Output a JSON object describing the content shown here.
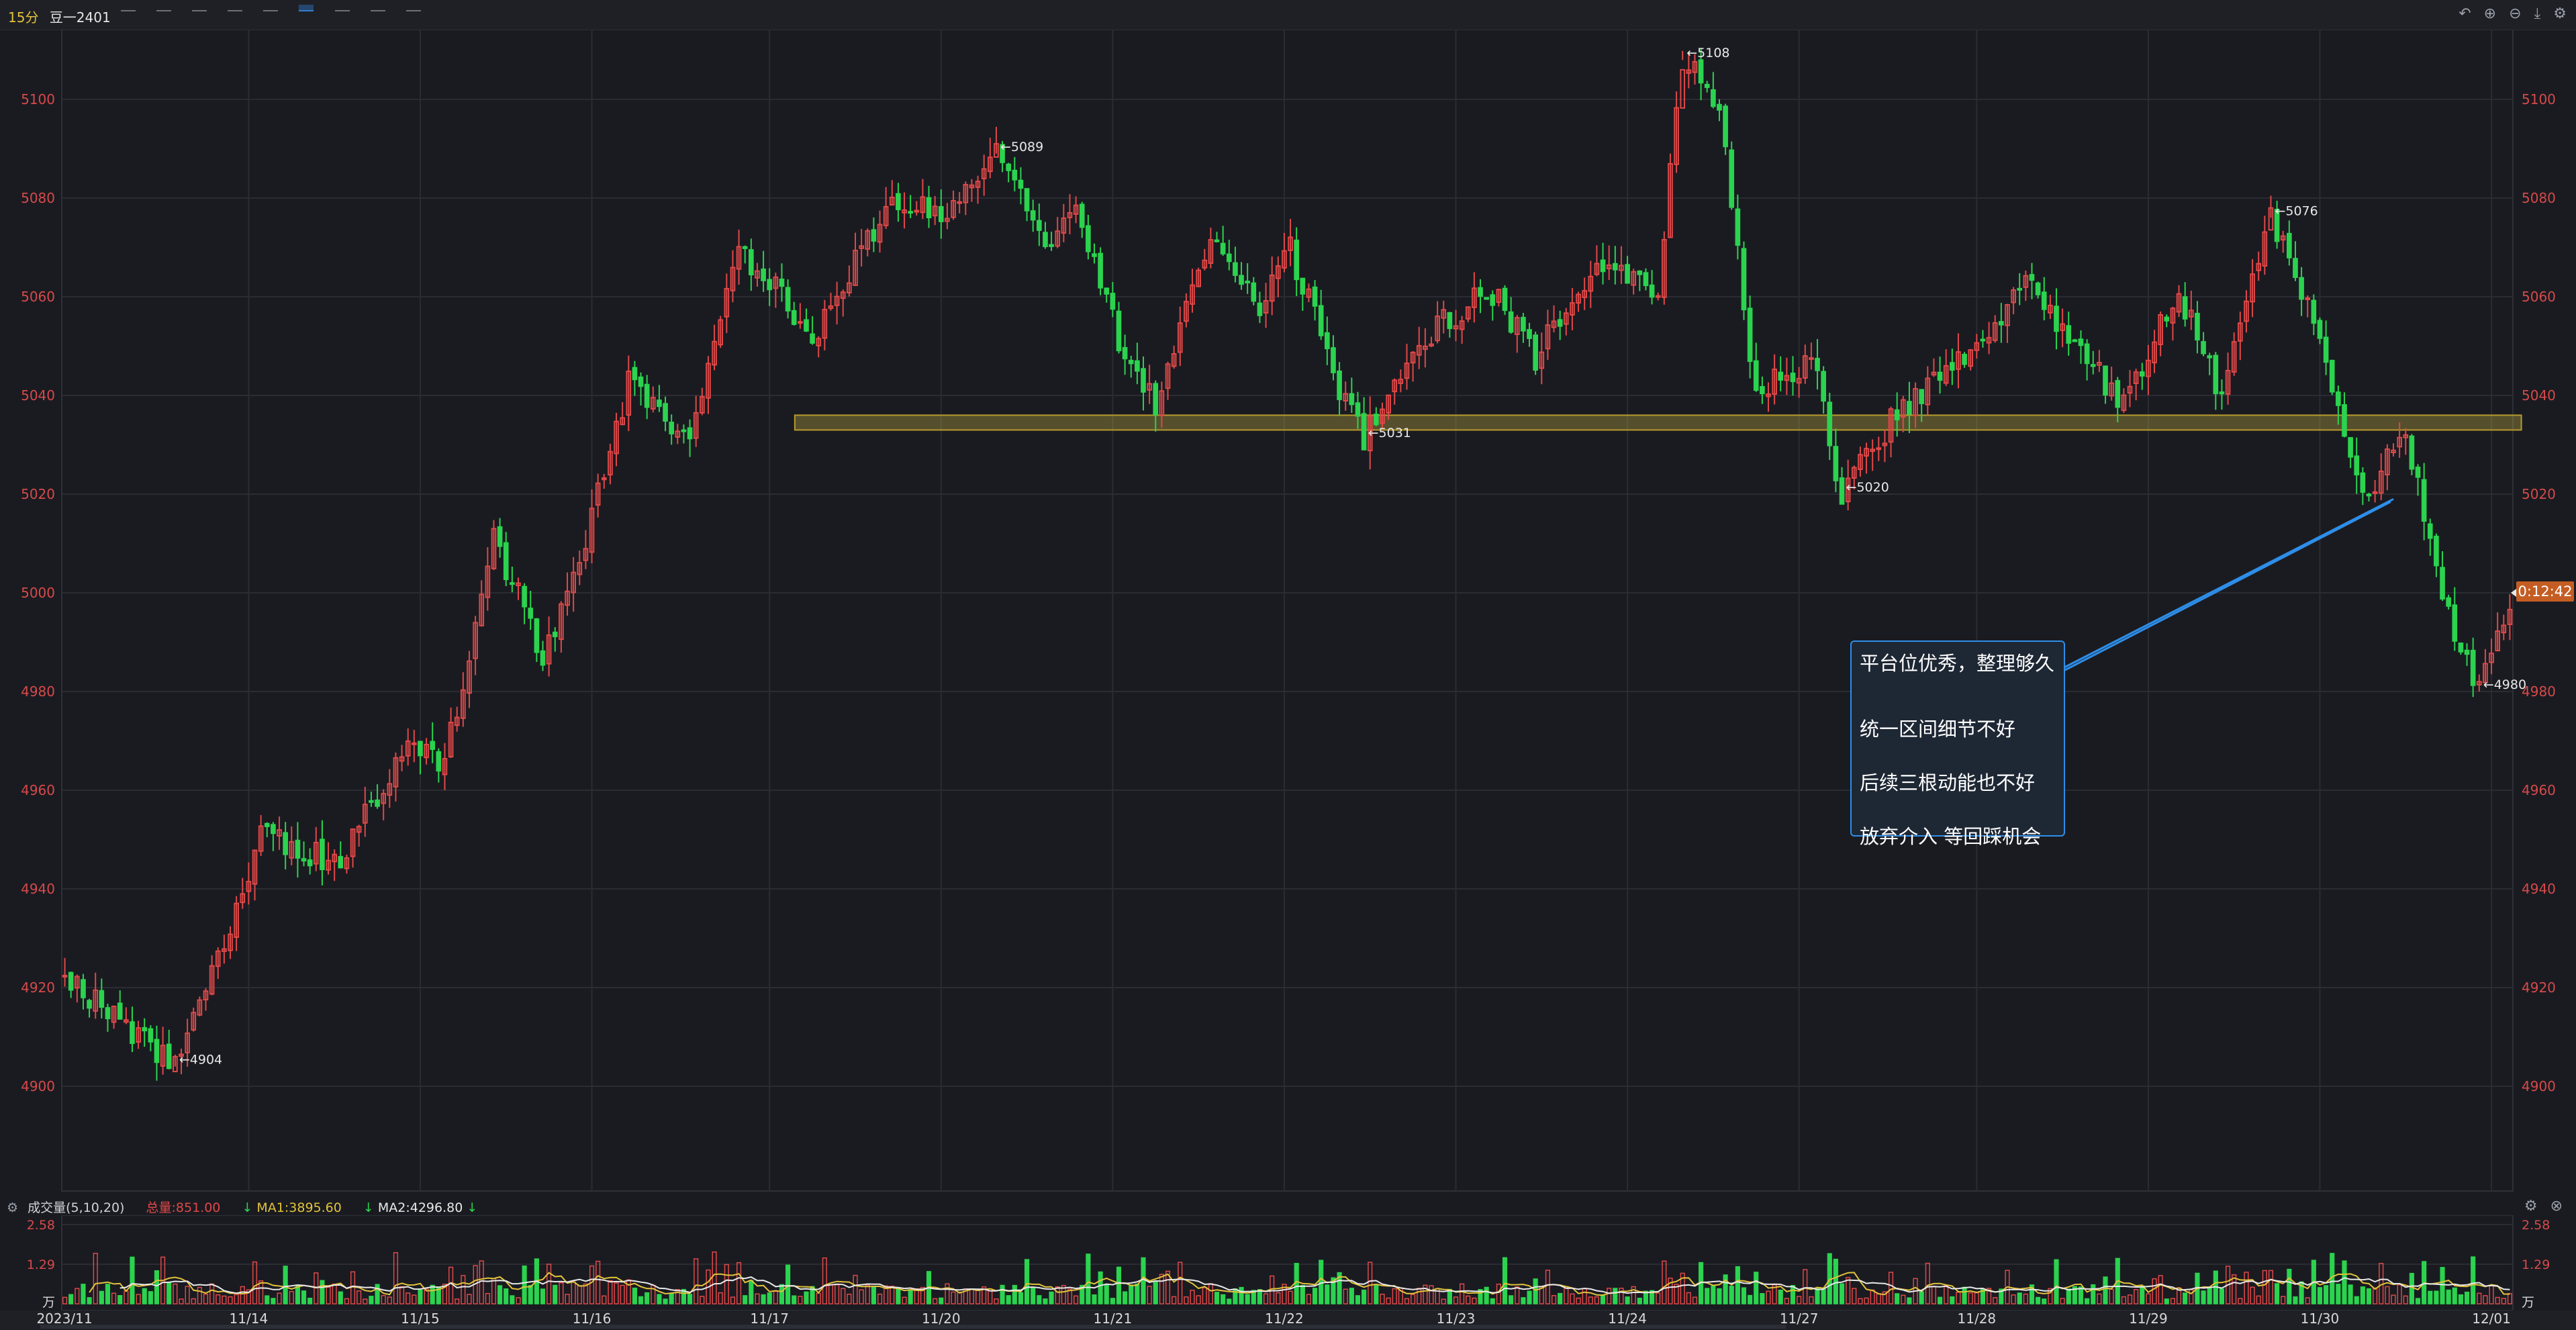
{
  "header": {
    "period": "15分",
    "symbol": "豆一2401",
    "right_icons": [
      "undo-icon",
      "zoom-in-icon",
      "zoom-out-icon",
      "export-icon",
      "settings-icon"
    ]
  },
  "chart_data": {
    "type": "candlestick",
    "price_axis": {
      "ylim": [
        4880,
        5120
      ],
      "ticks": [
        5100,
        5080,
        5060,
        5040,
        5020,
        5000,
        4980,
        4960,
        4940,
        4920,
        4900
      ]
    },
    "dates": [
      "2023/11",
      "11/14",
      "11/15",
      "11/16",
      "11/17",
      "11/20",
      "11/21",
      "11/22",
      "11/23",
      "11/24",
      "11/27",
      "11/28",
      "11/29",
      "11/30",
      "12/01"
    ],
    "path": [
      {
        "x": 0,
        "y": 4922
      },
      {
        "x": 18,
        "y": 4904
      },
      {
        "x": 32,
        "y": 4950
      },
      {
        "x": 45,
        "y": 4946
      },
      {
        "x": 56,
        "y": 4970
      },
      {
        "x": 62,
        "y": 4965
      },
      {
        "x": 70,
        "y": 5012
      },
      {
        "x": 78,
        "y": 4986
      },
      {
        "x": 85,
        "y": 5010
      },
      {
        "x": 92,
        "y": 5043
      },
      {
        "x": 102,
        "y": 5030
      },
      {
        "x": 110,
        "y": 5070
      },
      {
        "x": 122,
        "y": 5052
      },
      {
        "x": 135,
        "y": 5080
      },
      {
        "x": 145,
        "y": 5077
      },
      {
        "x": 152,
        "y": 5089
      },
      {
        "x": 160,
        "y": 5072
      },
      {
        "x": 165,
        "y": 5076
      },
      {
        "x": 172,
        "y": 5052
      },
      {
        "x": 178,
        "y": 5038
      },
      {
        "x": 187,
        "y": 5072
      },
      {
        "x": 195,
        "y": 5058
      },
      {
        "x": 200,
        "y": 5070
      },
      {
        "x": 207,
        "y": 5044
      },
      {
        "x": 212,
        "y": 5031
      },
      {
        "x": 222,
        "y": 5052
      },
      {
        "x": 232,
        "y": 5062
      },
      {
        "x": 240,
        "y": 5048
      },
      {
        "x": 250,
        "y": 5068
      },
      {
        "x": 260,
        "y": 5062
      },
      {
        "x": 264,
        "y": 5108
      },
      {
        "x": 270,
        "y": 5098
      },
      {
        "x": 276,
        "y": 5040
      },
      {
        "x": 285,
        "y": 5048
      },
      {
        "x": 290,
        "y": 5020
      },
      {
        "x": 300,
        "y": 5038
      },
      {
        "x": 310,
        "y": 5048
      },
      {
        "x": 320,
        "y": 5062
      },
      {
        "x": 328,
        "y": 5052
      },
      {
        "x": 335,
        "y": 5038
      },
      {
        "x": 345,
        "y": 5060
      },
      {
        "x": 352,
        "y": 5040
      },
      {
        "x": 360,
        "y": 5076
      },
      {
        "x": 368,
        "y": 5052
      },
      {
        "x": 375,
        "y": 5020
      },
      {
        "x": 382,
        "y": 5032
      },
      {
        "x": 388,
        "y": 4998
      },
      {
        "x": 394,
        "y": 4980
      },
      {
        "x": 399,
        "y": 4996
      }
    ],
    "price_labels": [
      {
        "i": 18,
        "label": "4904"
      },
      {
        "i": 152,
        "label": "5089"
      },
      {
        "i": 212,
        "label": "5031"
      },
      {
        "i": 264,
        "label": "5108"
      },
      {
        "i": 290,
        "label": "5020"
      },
      {
        "i": 360,
        "label": "5076"
      },
      {
        "i": 394,
        "label": "4980"
      }
    ],
    "zone": {
      "from_i": 120,
      "to_i": 400,
      "low": 5033,
      "high": 5036
    },
    "current_time_label": "0:12:42",
    "current_price": 5000,
    "volume": {
      "header_label": "成交量(5,10,20)",
      "total": "总量:851.00",
      "ma1": "MA1:3895.60",
      "ma2": "MA2:4296.80",
      "ticks": [
        "2.58",
        "1.29",
        "万"
      ]
    }
  },
  "annotation": {
    "lines": [
      "平台位优秀，整理够久",
      "统一区间细节不好",
      "后续三根动能也不好",
      "放弃介入 等回踩机会"
    ]
  }
}
